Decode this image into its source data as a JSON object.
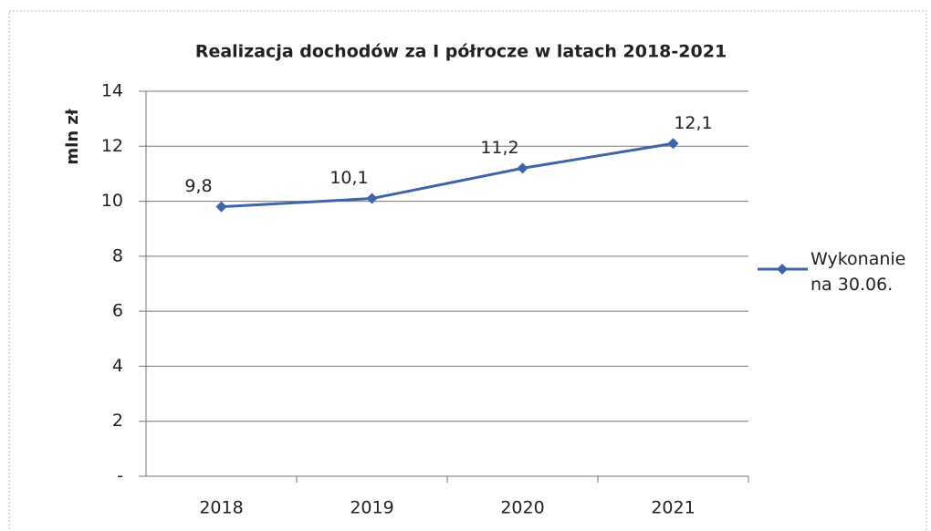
{
  "chart_data": {
    "type": "line",
    "title": "Realizacja dochodów za I półrocze w latach 2018-2021",
    "y_label": "mln zł",
    "categories": [
      "2018",
      "2019",
      "2020",
      "2021"
    ],
    "series": [
      {
        "name": "Wykonanie na 30.06.",
        "color": "#3d66a8",
        "values": [
          9.8,
          10.1,
          11.2,
          12.1
        ],
        "value_labels": [
          "9,8",
          "10,1",
          "11,2",
          "12,1"
        ]
      }
    ],
    "ylim": [
      0,
      14
    ],
    "yticks": [
      {
        "value": 0,
        "label": "-"
      },
      2,
      4,
      6,
      8,
      10,
      12,
      14
    ],
    "grid": true,
    "legend": "right"
  }
}
